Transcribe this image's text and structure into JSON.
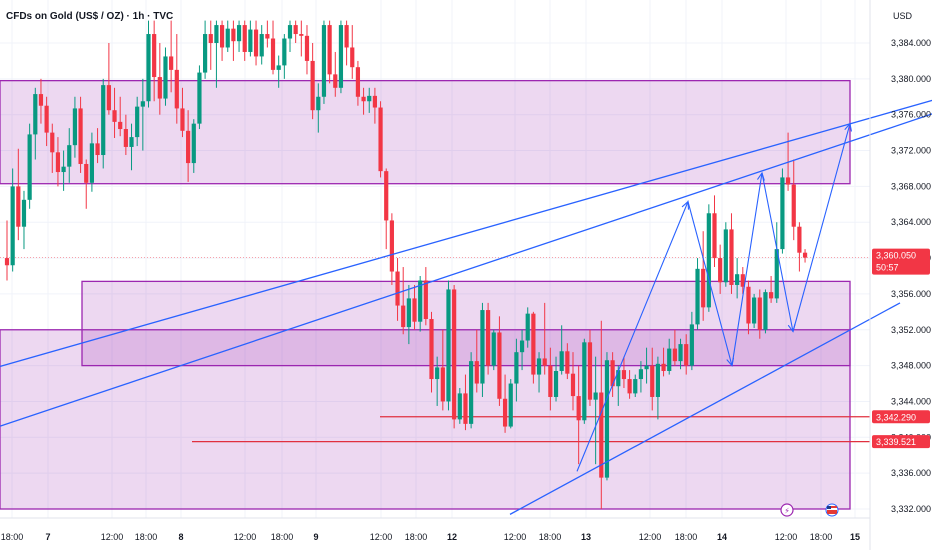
{
  "chart_data": {
    "type": "candlestick",
    "title": "CFDs on Gold (US$ / OZ) · 1h · TVC",
    "currency": "USD",
    "y_ticks": [
      3332,
      3336,
      3340,
      3344,
      3348,
      3352,
      3356,
      3360,
      3364,
      3368,
      3372,
      3376,
      3380,
      3384
    ],
    "y_tick_labels": [
      "3,332.000",
      "3,336.000",
      "3,340.000",
      "3,344.000",
      "3,348.000",
      "3,352.000",
      "3,356.000",
      "3,360.000",
      "3,364.000",
      "3,368.000",
      "3,372.000",
      "3,376.000",
      "3,380.000",
      "3,384.000"
    ],
    "ylim": [
      3331.2,
      3386.5
    ],
    "x_tick_labels": [
      {
        "label": "18:00",
        "day": false
      },
      {
        "label": "7",
        "day": true
      },
      {
        "label": "12:00",
        "day": false
      },
      {
        "label": "18:00",
        "day": false
      },
      {
        "label": "8",
        "day": true
      },
      {
        "label": "12:00",
        "day": false
      },
      {
        "label": "18:00",
        "day": false
      },
      {
        "label": "9",
        "day": true
      },
      {
        "label": "12:00",
        "day": false
      },
      {
        "label": "18:00",
        "day": false
      },
      {
        "label": "12",
        "day": true
      },
      {
        "label": "12:00",
        "day": false
      },
      {
        "label": "18:00",
        "day": false
      },
      {
        "label": "13",
        "day": true
      },
      {
        "label": "12:00",
        "day": false
      },
      {
        "label": "18:00",
        "day": false
      },
      {
        "label": "14",
        "day": true
      },
      {
        "label": "12:00",
        "day": false
      },
      {
        "label": "18:00",
        "day": false
      },
      {
        "label": "15",
        "day": true
      }
    ],
    "price_badges": [
      {
        "label": "3,360.050",
        "sublabel": "50:57",
        "value": 3360.05,
        "color": "#f23645"
      },
      {
        "label": "3,342.290",
        "value": 3342.29,
        "color": "#f23645"
      },
      {
        "label": "3,339.521",
        "value": 3339.52,
        "color": "#f23645"
      }
    ],
    "zones": [
      {
        "name": "upper-zone",
        "top": 3379.8,
        "bottom": 3368.3,
        "color": "#9c27b0"
      },
      {
        "name": "middle-zone",
        "top": 3357.4,
        "bottom": 3348.0,
        "color": "#9c27b0"
      },
      {
        "name": "lower-zone",
        "top": 3352.0,
        "bottom": 3332.0,
        "color": "#9c27b0"
      }
    ],
    "horizontal_lines": [
      {
        "name": "resistance-line-1",
        "value": 3342.29,
        "color": "#e0303f"
      },
      {
        "name": "resistance-line-2",
        "value": 3339.52,
        "color": "#e0303f"
      }
    ],
    "trend_lines": [
      {
        "name": "channel-line-a",
        "points": [
          [
            -60,
            3339.0
          ],
          [
            970,
            3377.5
          ]
        ],
        "color": "#2962ff"
      },
      {
        "name": "channel-line-b",
        "points": [
          [
            -60,
            3346.0
          ],
          [
            970,
            3378.8
          ]
        ],
        "color": "#2962ff"
      },
      {
        "name": "channel-line-c",
        "points": [
          [
            510,
            3331.4
          ],
          [
            900,
            3355.0
          ]
        ],
        "color": "#2962ff"
      }
    ],
    "projection_path": {
      "color": "#2962ff",
      "points": [
        [
          577,
          3336.2
        ],
        [
          688,
          3366.3
        ],
        [
          732,
          3348.0
        ],
        [
          762,
          3369.5
        ],
        [
          793,
          3351.8
        ],
        [
          850,
          3375.0
        ]
      ]
    },
    "candles": [
      [
        3360.0,
        3364.2,
        3357.5,
        3359.2
      ],
      [
        3359.2,
        3370.0,
        3358.5,
        3368.0
      ],
      [
        3368.0,
        3372.2,
        3362.0,
        3363.5
      ],
      [
        3363.5,
        3367.5,
        3361.0,
        3366.5
      ],
      [
        3366.5,
        3375.0,
        3365.5,
        3373.8
      ],
      [
        3373.8,
        3379.0,
        3371.0,
        3378.3
      ],
      [
        3378.3,
        3380.0,
        3375.0,
        3377.0
      ],
      [
        3377.0,
        3378.0,
        3372.5,
        3374.0
      ],
      [
        3374.0,
        3375.0,
        3369.5,
        3371.8
      ],
      [
        3371.8,
        3373.5,
        3368.0,
        3369.6
      ],
      [
        3369.6,
        3372.0,
        3367.5,
        3370.2
      ],
      [
        3370.2,
        3374.5,
        3368.4,
        3372.6
      ],
      [
        3372.6,
        3378.0,
        3371.2,
        3376.7
      ],
      [
        3376.7,
        3378.0,
        3369.5,
        3370.5
      ],
      [
        3370.5,
        3371.0,
        3365.5,
        3368.4
      ],
      [
        3368.4,
        3374.0,
        3367.4,
        3372.8
      ],
      [
        3372.8,
        3374.5,
        3370.6,
        3371.5
      ],
      [
        3371.5,
        3380.0,
        3370.0,
        3379.3
      ],
      [
        3379.3,
        3384.0,
        3376.0,
        3376.5
      ],
      [
        3376.5,
        3379.0,
        3373.4,
        3375.2
      ],
      [
        3375.2,
        3378.0,
        3373.6,
        3374.4
      ],
      [
        3374.4,
        3376.0,
        3371.5,
        3372.4
      ],
      [
        3372.4,
        3375.0,
        3369.8,
        3373.5
      ],
      [
        3373.5,
        3378.0,
        3372.5,
        3376.9
      ],
      [
        3376.9,
        3380.0,
        3372.0,
        3377.5
      ],
      [
        3377.5,
        3386.5,
        3376.8,
        3385.0
      ],
      [
        3385.0,
        3386.5,
        3377.5,
        3380.2
      ],
      [
        3380.2,
        3384.0,
        3376.0,
        3377.8
      ],
      [
        3377.8,
        3383.5,
        3377.0,
        3382.5
      ],
      [
        3382.5,
        3386.5,
        3378.5,
        3381.0
      ],
      [
        3381.0,
        3385.0,
        3375.0,
        3376.7
      ],
      [
        3376.7,
        3379.0,
        3373.5,
        3374.2
      ],
      [
        3374.2,
        3376.5,
        3368.5,
        3370.6
      ],
      [
        3370.6,
        3375.5,
        3369.5,
        3375.0
      ],
      [
        3375.0,
        3381.5,
        3374.4,
        3380.7
      ],
      [
        3380.7,
        3386.5,
        3380.0,
        3385.0
      ],
      [
        3385.0,
        3386.5,
        3381.0,
        3384.0
      ],
      [
        3384.0,
        3386.5,
        3379.0,
        3386.0
      ],
      [
        3386.0,
        3386.5,
        3382.0,
        3383.5
      ],
      [
        3383.5,
        3386.5,
        3383.0,
        3385.6
      ],
      [
        3385.6,
        3386.5,
        3382.0,
        3384.2
      ],
      [
        3384.2,
        3386.5,
        3383.0,
        3386.0
      ],
      [
        3386.0,
        3386.5,
        3382.0,
        3383.0
      ],
      [
        3383.0,
        3386.5,
        3382.5,
        3385.5
      ],
      [
        3385.5,
        3386.5,
        3381.5,
        3382.5
      ],
      [
        3382.5,
        3386.0,
        3381.6,
        3385.0
      ],
      [
        3385.0,
        3386.5,
        3383.5,
        3384.5
      ],
      [
        3384.5,
        3386.5,
        3380.5,
        3381.0
      ],
      [
        3381.0,
        3382.6,
        3379.0,
        3381.5
      ],
      [
        3381.5,
        3385.0,
        3380.0,
        3384.5
      ],
      [
        3384.5,
        3386.5,
        3383.0,
        3386.0
      ],
      [
        3386.0,
        3386.5,
        3384.0,
        3385.0
      ],
      [
        3385.0,
        3386.5,
        3382.5,
        3384.8
      ],
      [
        3384.8,
        3386.0,
        3380.5,
        3382.0
      ],
      [
        3382.0,
        3384.0,
        3375.5,
        3376.5
      ],
      [
        3376.5,
        3379.5,
        3374.0,
        3378.0
      ],
      [
        3378.0,
        3386.5,
        3377.2,
        3386.0
      ],
      [
        3386.0,
        3386.5,
        3379.5,
        3380.5
      ],
      [
        3380.5,
        3383.0,
        3378.0,
        3379.0
      ],
      [
        3379.0,
        3386.5,
        3378.4,
        3386.0
      ],
      [
        3386.0,
        3386.5,
        3381.5,
        3383.5
      ],
      [
        3383.5,
        3386.0,
        3380.0,
        3381.3
      ],
      [
        3381.3,
        3382.0,
        3377.0,
        3378.0
      ],
      [
        3378.0,
        3379.0,
        3376.0,
        3377.5
      ],
      [
        3377.5,
        3379.0,
        3376.2,
        3378.1
      ],
      [
        3378.1,
        3379.0,
        3375.0,
        3376.8
      ],
      [
        3376.8,
        3377.5,
        3369.0,
        3369.7
      ],
      [
        3369.7,
        3370.0,
        3361.0,
        3364.2
      ],
      [
        3364.2,
        3365.0,
        3357.0,
        3358.5
      ],
      [
        3358.5,
        3360.0,
        3353.0,
        3354.7
      ],
      [
        3354.7,
        3359.0,
        3351.5,
        3352.3
      ],
      [
        3352.3,
        3357.0,
        3350.4,
        3355.5
      ],
      [
        3355.5,
        3357.0,
        3352.0,
        3352.9
      ],
      [
        3352.9,
        3358.0,
        3351.8,
        3357.5
      ],
      [
        3357.5,
        3359.0,
        3352.5,
        3353.2
      ],
      [
        3353.2,
        3354.0,
        3345.0,
        3346.5
      ],
      [
        3346.5,
        3349.0,
        3343.5,
        3347.8
      ],
      [
        3347.8,
        3352.0,
        3343.0,
        3344.0
      ],
      [
        3344.0,
        3357.5,
        3343.0,
        3356.5
      ],
      [
        3356.5,
        3357.0,
        3341.0,
        3342.0
      ],
      [
        3342.0,
        3345.5,
        3341.5,
        3344.9
      ],
      [
        3344.9,
        3347.0,
        3340.8,
        3341.5
      ],
      [
        3341.5,
        3349.5,
        3341.0,
        3348.5
      ],
      [
        3348.5,
        3352.0,
        3345.0,
        3346.0
      ],
      [
        3346.0,
        3355.0,
        3344.5,
        3354.2
      ],
      [
        3354.2,
        3355.0,
        3347.0,
        3348.0
      ],
      [
        3348.0,
        3352.0,
        3347.5,
        3351.7
      ],
      [
        3351.7,
        3353.5,
        3343.5,
        3344.3
      ],
      [
        3344.3,
        3347.0,
        3340.5,
        3341.2
      ],
      [
        3341.2,
        3346.5,
        3341.0,
        3346.0
      ],
      [
        3346.0,
        3351.0,
        3344.0,
        3349.5
      ],
      [
        3349.5,
        3352.0,
        3347.5,
        3350.8
      ],
      [
        3350.8,
        3354.5,
        3350.0,
        3353.8
      ],
      [
        3353.8,
        3354.0,
        3346.0,
        3347.0
      ],
      [
        3347.0,
        3349.5,
        3345.0,
        3348.8
      ],
      [
        3348.8,
        3355.0,
        3347.0,
        3348.0
      ],
      [
        3348.0,
        3350.0,
        3343.0,
        3344.5
      ],
      [
        3344.5,
        3349.0,
        3344.0,
        3347.4
      ],
      [
        3347.4,
        3352.5,
        3347.0,
        3349.6
      ],
      [
        3349.6,
        3350.5,
        3346.5,
        3347.1
      ],
      [
        3347.1,
        3349.5,
        3343.0,
        3344.6
      ],
      [
        3344.6,
        3348.0,
        3337.0,
        3341.9
      ],
      [
        3341.9,
        3351.0,
        3341.5,
        3350.6
      ],
      [
        3350.6,
        3352.0,
        3343.5,
        3344.2
      ],
      [
        3344.2,
        3349.0,
        3337.0,
        3345.0
      ],
      [
        3345.0,
        3353.0,
        3332.0,
        3335.5
      ],
      [
        3335.5,
        3349.5,
        3335.2,
        3348.6
      ],
      [
        3348.6,
        3349.5,
        3344.5,
        3345.7
      ],
      [
        3345.7,
        3348.0,
        3343.5,
        3347.5
      ],
      [
        3347.5,
        3349.0,
        3345.5,
        3346.5
      ],
      [
        3346.5,
        3347.5,
        3344.3,
        3344.9
      ],
      [
        3344.9,
        3347.0,
        3344.5,
        3346.5
      ],
      [
        3346.5,
        3348.5,
        3345.0,
        3347.6
      ],
      [
        3347.6,
        3350.0,
        3346.0,
        3348.0
      ],
      [
        3348.0,
        3350.0,
        3343.0,
        3344.5
      ],
      [
        3344.5,
        3349.0,
        3342.0,
        3348.2
      ],
      [
        3348.2,
        3350.0,
        3346.8,
        3347.4
      ],
      [
        3347.4,
        3351.0,
        3347.0,
        3349.9
      ],
      [
        3349.9,
        3352.0,
        3348.0,
        3348.5
      ],
      [
        3348.5,
        3351.0,
        3347.6,
        3350.4
      ],
      [
        3350.4,
        3351.5,
        3347.0,
        3348.0
      ],
      [
        3348.0,
        3354.0,
        3347.5,
        3352.6
      ],
      [
        3352.6,
        3360.0,
        3352.0,
        3358.8
      ],
      [
        3358.8,
        3363.0,
        3353.0,
        3354.5
      ],
      [
        3354.5,
        3366.0,
        3354.0,
        3365.0
      ],
      [
        3365.0,
        3367.0,
        3359.0,
        3360.0
      ],
      [
        3360.0,
        3361.5,
        3356.0,
        3357.3
      ],
      [
        3357.3,
        3364.0,
        3356.8,
        3363.2
      ],
      [
        3363.2,
        3365.0,
        3356.0,
        3357.0
      ],
      [
        3357.0,
        3360.0,
        3355.5,
        3358.2
      ],
      [
        3358.2,
        3359.0,
        3356.0,
        3356.8
      ],
      [
        3356.8,
        3357.5,
        3351.5,
        3352.7
      ],
      [
        3352.7,
        3356.0,
        3352.2,
        3355.6
      ],
      [
        3355.6,
        3356.5,
        3351.0,
        3352.0
      ],
      [
        3352.0,
        3356.5,
        3351.6,
        3356.2
      ],
      [
        3356.2,
        3358.0,
        3355.0,
        3355.5
      ],
      [
        3355.5,
        3364.0,
        3355.0,
        3361.0
      ],
      [
        3361.0,
        3370.0,
        3360.5,
        3369.0
      ],
      [
        3369.0,
        3374.0,
        3367.5,
        3368.2
      ],
      [
        3368.2,
        3371.0,
        3362.0,
        3363.5
      ],
      [
        3363.5,
        3364.0,
        3358.5,
        3360.6
      ],
      [
        3360.6,
        3361.0,
        3359.5,
        3360.05
      ]
    ]
  }
}
